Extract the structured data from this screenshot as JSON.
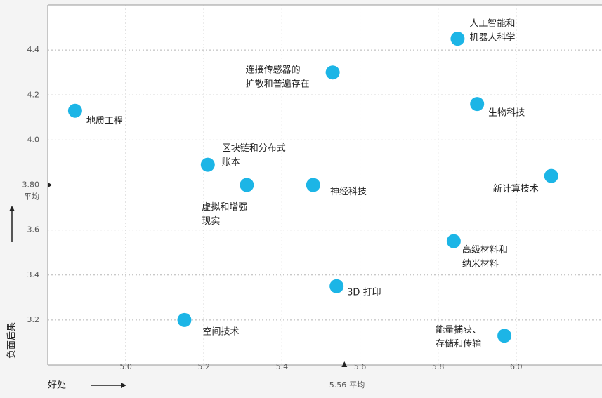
{
  "chart_data": {
    "type": "scatter",
    "x": [
      4.87,
      5.21,
      5.31,
      5.48,
      5.53,
      5.85,
      5.9,
      6.09,
      5.84,
      5.54,
      5.15,
      5.97
    ],
    "values": [
      4.13,
      3.89,
      3.8,
      3.8,
      4.3,
      4.45,
      4.16,
      3.84,
      3.55,
      3.35,
      3.2,
      3.13
    ],
    "labels": [
      [
        "地质工程"
      ],
      [
        "区块链和分布式",
        "账本"
      ],
      [
        "虚拟和增强",
        "现实"
      ],
      [
        "神经科技"
      ],
      [
        "连接传感器的",
        "扩散和普遍存在"
      ],
      [
        "人工智能和",
        "机器人科学"
      ],
      [
        "生物科技"
      ],
      [
        "新计算技术"
      ],
      [
        "高级材料和",
        "纳米材料"
      ],
      [
        "3D 打印"
      ],
      [
        "空间技术"
      ],
      [
        "能量捕获、",
        "存储和传输"
      ]
    ],
    "color": "#1cb5e6",
    "xlim": [
      4.8,
      6.22
    ],
    "ylim": [
      3.0,
      4.6
    ],
    "xticks": [
      {
        "value": 5,
        "label": "5.0"
      },
      5.2,
      5.4,
      5.6,
      5.8,
      {
        "value": 6,
        "label": "6.0"
      }
    ],
    "yticks": [
      3.2,
      3.4,
      3.6,
      {
        "value": 3.8,
        "label": "3.80"
      },
      {
        "value": 4,
        "label": "4.0"
      },
      4.2,
      4.4
    ],
    "x_mean": {
      "value": 5.56,
      "label": "平均"
    },
    "y_mean": {
      "value": 3.8,
      "label": "平均"
    },
    "xlabel": "好处",
    "ylabel": "负面后果",
    "grid": true
  }
}
